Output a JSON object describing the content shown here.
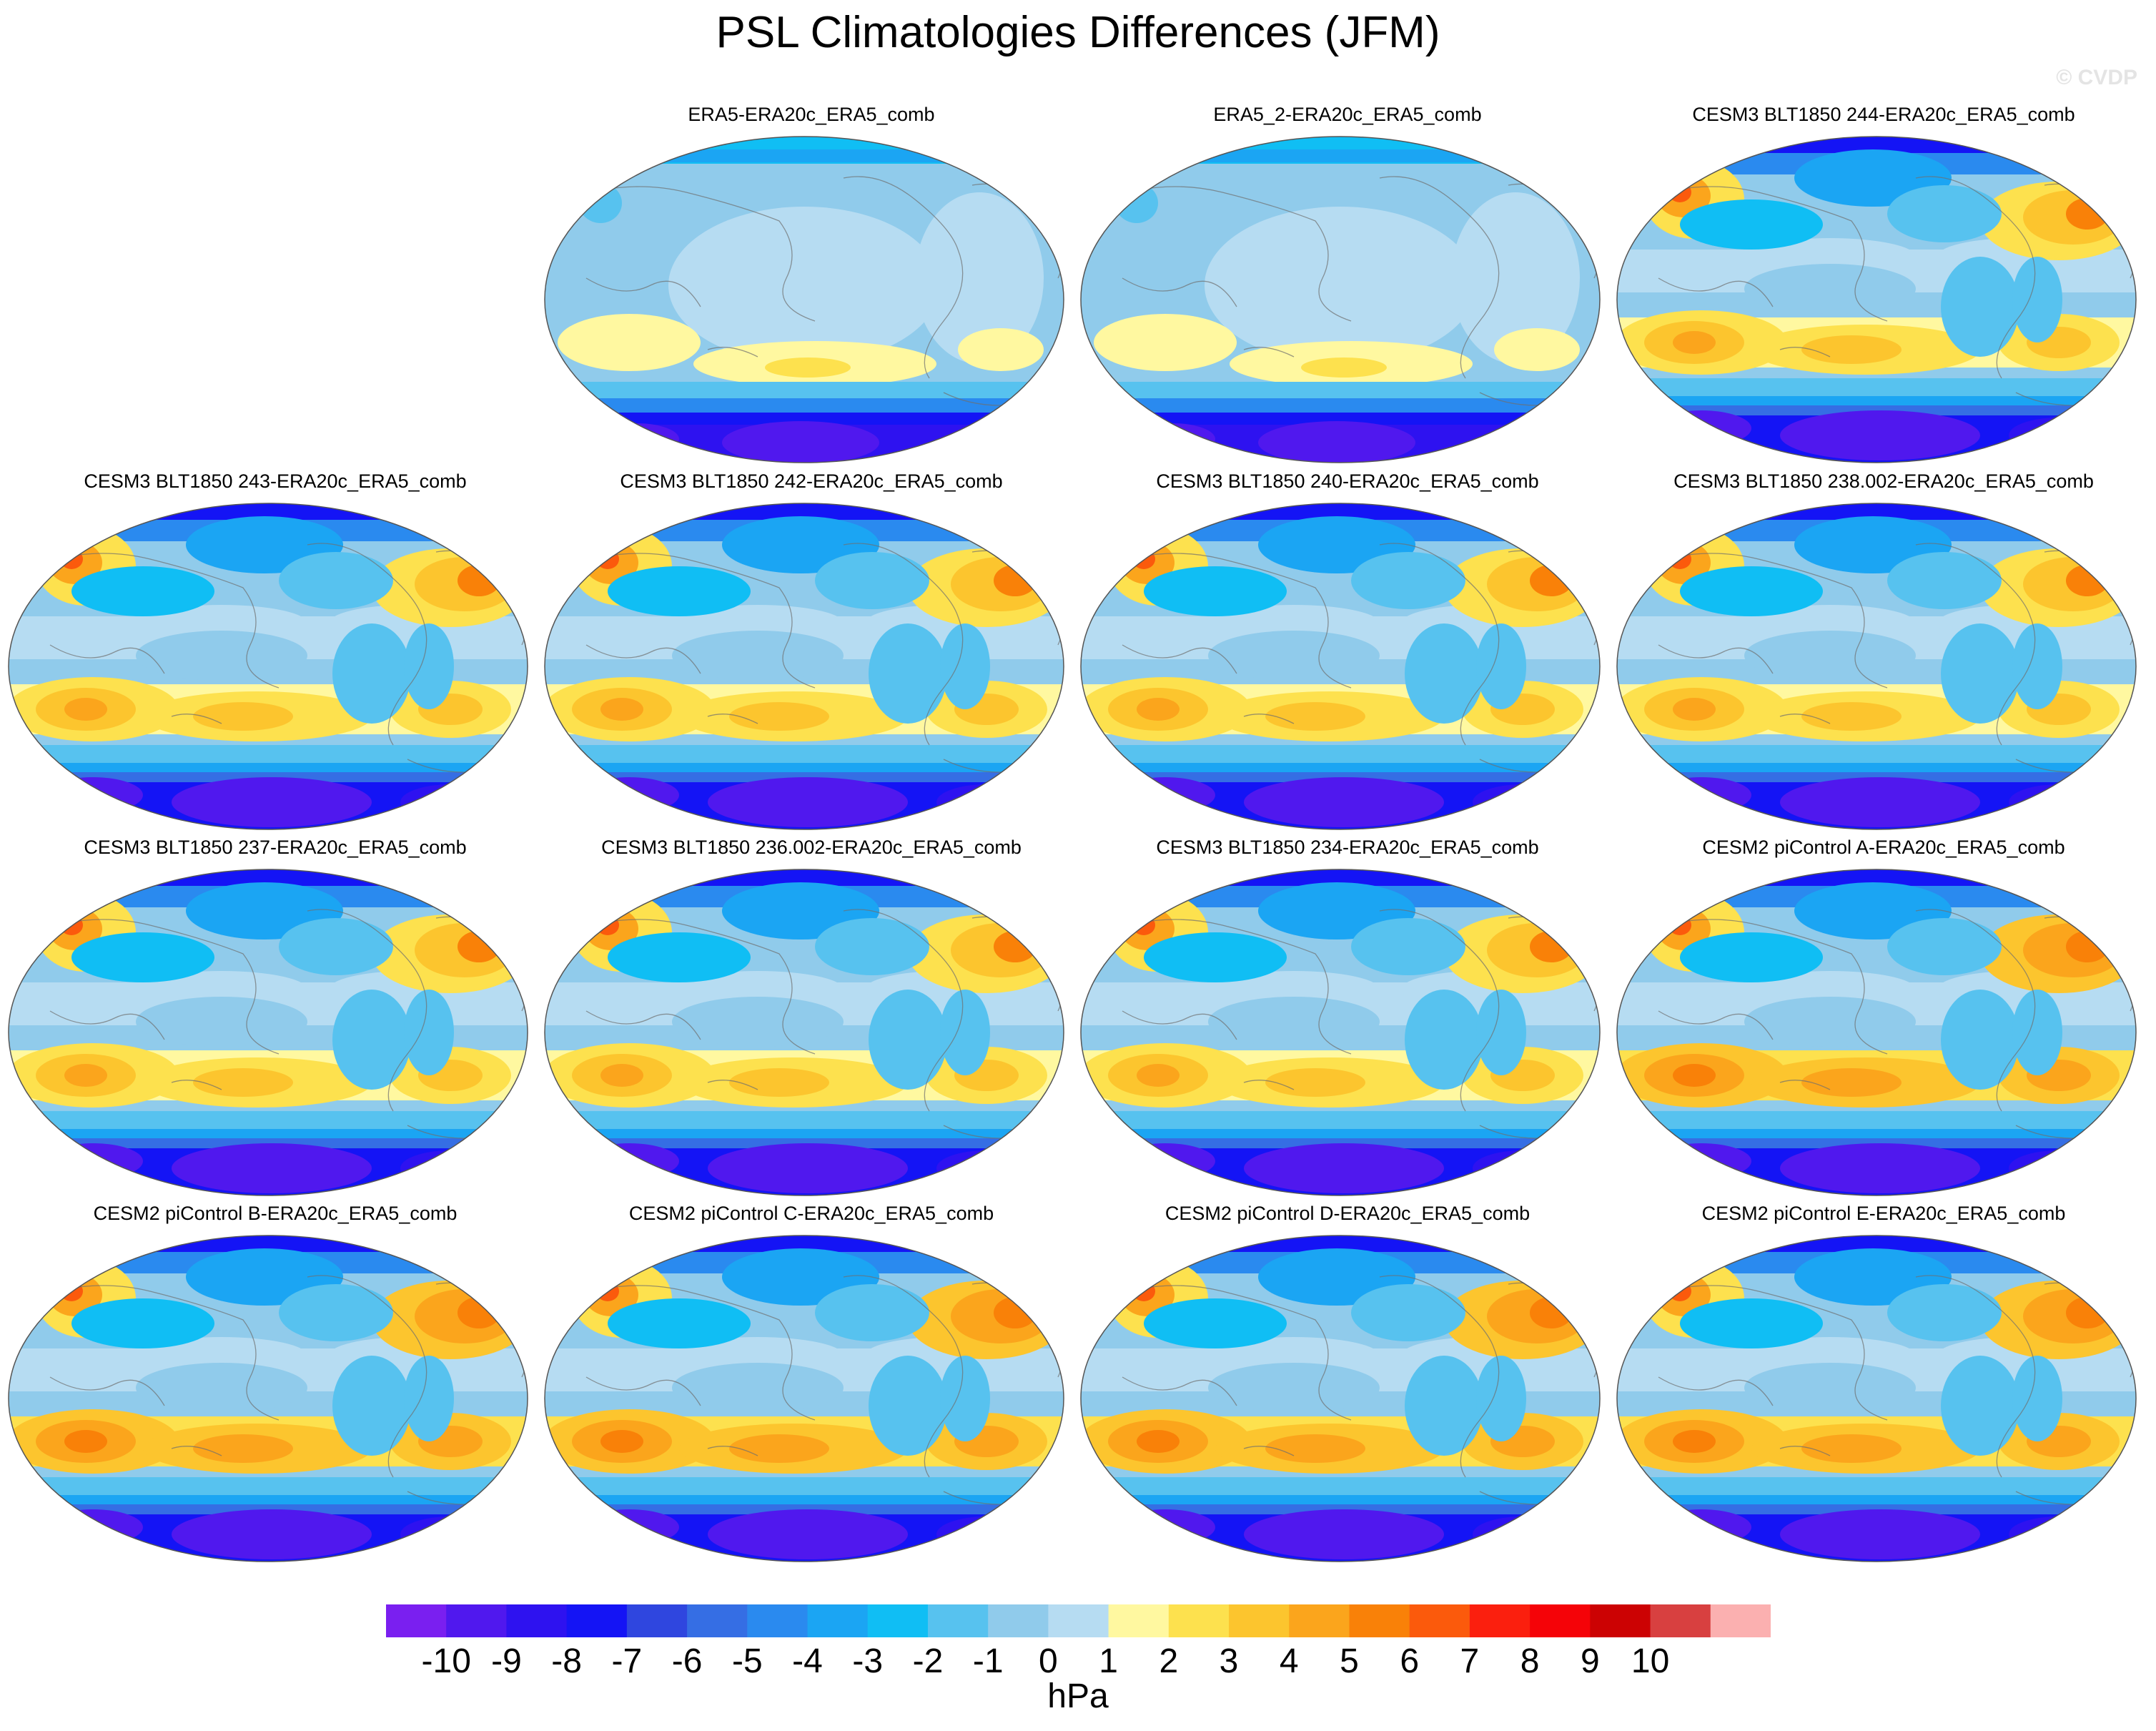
{
  "figure": {
    "title": "PSL Climatologies Differences (JFM)",
    "watermark": "© CVDP",
    "units": "hPa"
  },
  "colorbar": {
    "ticks": [
      "-10",
      "-9",
      "-8",
      "-7",
      "-6",
      "-5",
      "-4",
      "-3",
      "-2",
      "-1",
      "0",
      "1",
      "2",
      "3",
      "4",
      "5",
      "6",
      "7",
      "8",
      "9",
      "10"
    ],
    "colors": [
      "#7a1ff0",
      "#5018ee",
      "#2e12f0",
      "#1414f5",
      "#2f46df",
      "#356ee4",
      "#2a8aef",
      "#1ba5f3",
      "#10bef4",
      "#57c2ef",
      "#90cbeb",
      "#b6dcf2",
      "#fff8a0",
      "#fde14e",
      "#fcc52e",
      "#fba51c",
      "#f98108",
      "#fb5a0c",
      "#fb1f0e",
      "#f50308",
      "#cc0203",
      "#d84040",
      "#fbb0b0"
    ]
  },
  "panels": [
    {
      "title": "ERA5-ERA20c_ERA5_comb",
      "style": "reanalysis"
    },
    {
      "title": "ERA5_2-ERA20c_ERA5_comb",
      "style": "reanalysis"
    },
    {
      "title": "CESM3 BLT1850 244-ERA20c_ERA5_comb",
      "style": "cesm3"
    },
    {
      "title": "CESM3 BLT1850 243-ERA20c_ERA5_comb",
      "style": "cesm3"
    },
    {
      "title": "CESM3 BLT1850 242-ERA20c_ERA5_comb",
      "style": "cesm3"
    },
    {
      "title": "CESM3 BLT1850 240-ERA20c_ERA5_comb",
      "style": "cesm3"
    },
    {
      "title": "CESM3 BLT1850 238.002-ERA20c_ERA5_comb",
      "style": "cesm3"
    },
    {
      "title": "CESM3 BLT1850 237-ERA20c_ERA5_comb",
      "style": "cesm3"
    },
    {
      "title": "CESM3 BLT1850 236.002-ERA20c_ERA5_comb",
      "style": "cesm3"
    },
    {
      "title": "CESM3 BLT1850 234-ERA20c_ERA5_comb",
      "style": "cesm3"
    },
    {
      "title": "CESM2 piControl A-ERA20c_ERA5_comb",
      "style": "cesm2"
    },
    {
      "title": "CESM2 piControl B-ERA20c_ERA5_comb",
      "style": "cesm2"
    },
    {
      "title": "CESM2 piControl C-ERA20c_ERA5_comb",
      "style": "cesm2"
    },
    {
      "title": "CESM2 piControl D-ERA20c_ERA5_comb",
      "style": "cesm2"
    },
    {
      "title": "CESM2 piControl E-ERA20c_ERA5_comb",
      "style": "cesm2"
    }
  ]
}
